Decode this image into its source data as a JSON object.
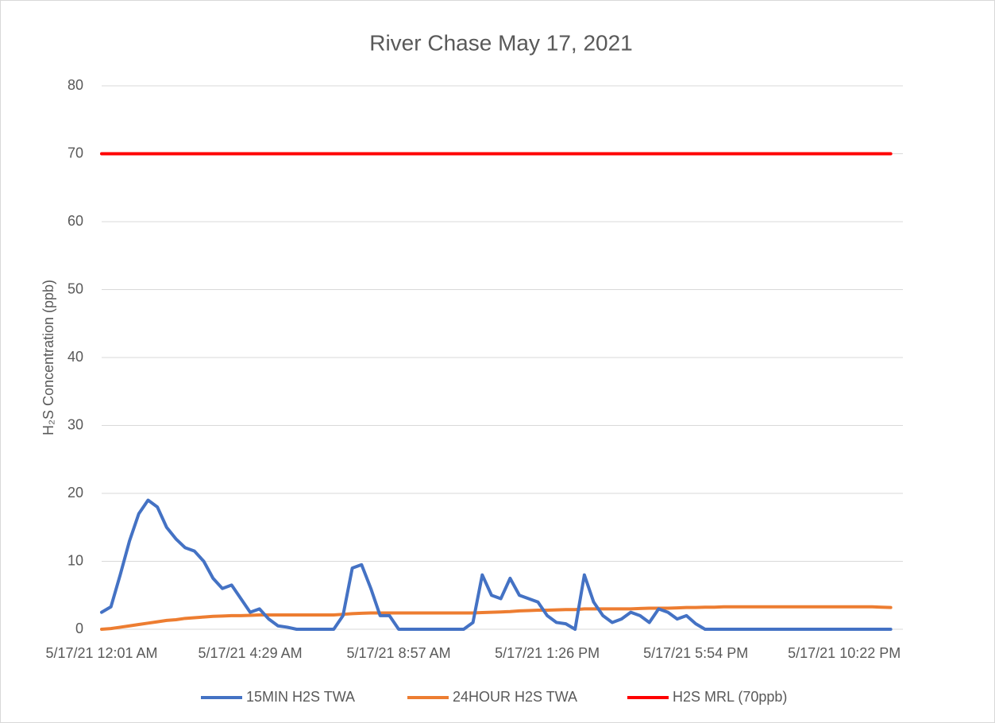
{
  "chart_data": {
    "type": "line",
    "title": "River Chase May 17, 2021",
    "y_label": "H₂S Concentration (ppb)",
    "categories": [
      "5/17/21 12:01 AM",
      null,
      null,
      null,
      null,
      null,
      null,
      null,
      null,
      null,
      null,
      null,
      null,
      null,
      null,
      null,
      "5/17/21 4:29 AM",
      null,
      null,
      null,
      null,
      null,
      null,
      null,
      null,
      null,
      null,
      null,
      null,
      null,
      null,
      null,
      "5/17/21 8:57 AM",
      null,
      null,
      null,
      null,
      null,
      null,
      null,
      null,
      null,
      null,
      null,
      null,
      null,
      null,
      null,
      "5/17/21 1:26 PM",
      null,
      null,
      null,
      null,
      null,
      null,
      null,
      null,
      null,
      null,
      null,
      null,
      null,
      null,
      null,
      "5/17/21 5:54 PM",
      null,
      null,
      null,
      null,
      null,
      null,
      null,
      null,
      null,
      null,
      null,
      null,
      null,
      null,
      null,
      "5/17/21 10:22 PM",
      null,
      null,
      null,
      null,
      null
    ],
    "series": [
      {
        "name": "15MIN H2S TWA",
        "color": "#4472c4",
        "values": [
          2.5,
          3.3,
          8,
          13,
          17,
          19,
          18,
          15,
          13.3,
          12,
          11.5,
          10,
          7.5,
          6,
          6.5,
          4.5,
          2.5,
          3,
          1.5,
          0.5,
          0.3,
          0,
          0,
          0,
          0,
          0,
          2,
          9,
          9.5,
          6,
          2,
          2,
          0,
          0,
          0,
          0,
          0,
          0,
          0,
          0,
          1,
          8,
          5,
          4.5,
          7.5,
          5,
          4.5,
          4,
          2,
          1,
          0.8,
          0,
          8,
          4,
          2,
          1,
          1.5,
          2.5,
          2,
          1,
          3,
          2.5,
          1.5,
          2,
          0.8,
          0,
          0,
          0,
          0,
          0,
          0,
          0,
          0,
          0,
          0,
          0,
          0,
          0,
          0,
          0,
          0,
          0,
          0,
          0,
          0,
          0
        ]
      },
      {
        "name": "24HOUR H2S TWA",
        "color": "#ed7d31",
        "values": [
          0,
          0.1,
          0.3,
          0.5,
          0.7,
          0.9,
          1.1,
          1.3,
          1.4,
          1.6,
          1.7,
          1.8,
          1.9,
          1.95,
          2,
          2,
          2.05,
          2.1,
          2.1,
          2.1,
          2.1,
          2.1,
          2.1,
          2.1,
          2.1,
          2.1,
          2.2,
          2.3,
          2.35,
          2.4,
          2.4,
          2.4,
          2.4,
          2.4,
          2.4,
          2.4,
          2.4,
          2.4,
          2.4,
          2.4,
          2.4,
          2.45,
          2.5,
          2.55,
          2.6,
          2.7,
          2.75,
          2.8,
          2.8,
          2.85,
          2.9,
          2.9,
          3,
          3,
          3,
          3,
          3,
          3,
          3.05,
          3.1,
          3.1,
          3.1,
          3.15,
          3.2,
          3.2,
          3.25,
          3.25,
          3.3,
          3.3,
          3.3,
          3.3,
          3.3,
          3.3,
          3.3,
          3.3,
          3.3,
          3.3,
          3.3,
          3.3,
          3.3,
          3.3,
          3.3,
          3.3,
          3.3,
          3.25,
          3.2
        ]
      },
      {
        "name": "H2S MRL (70ppb)",
        "color": "#ff0000",
        "values": [
          70,
          70,
          70,
          70,
          70,
          70,
          70,
          70,
          70,
          70,
          70,
          70,
          70,
          70,
          70,
          70,
          70,
          70,
          70,
          70,
          70,
          70,
          70,
          70,
          70,
          70,
          70,
          70,
          70,
          70,
          70,
          70,
          70,
          70,
          70,
          70,
          70,
          70,
          70,
          70,
          70,
          70,
          70,
          70,
          70,
          70,
          70,
          70,
          70,
          70,
          70,
          70,
          70,
          70,
          70,
          70,
          70,
          70,
          70,
          70,
          70,
          70,
          70,
          70,
          70,
          70,
          70,
          70,
          70,
          70,
          70,
          70,
          70,
          70,
          70,
          70,
          70,
          70,
          70,
          70,
          70,
          70,
          70,
          70,
          70,
          70
        ]
      }
    ],
    "ylim": [
      0,
      80
    ],
    "yticks": [
      0,
      10,
      20,
      30,
      40,
      50,
      60,
      70,
      80
    ],
    "grid": true,
    "legend": "bottom"
  }
}
